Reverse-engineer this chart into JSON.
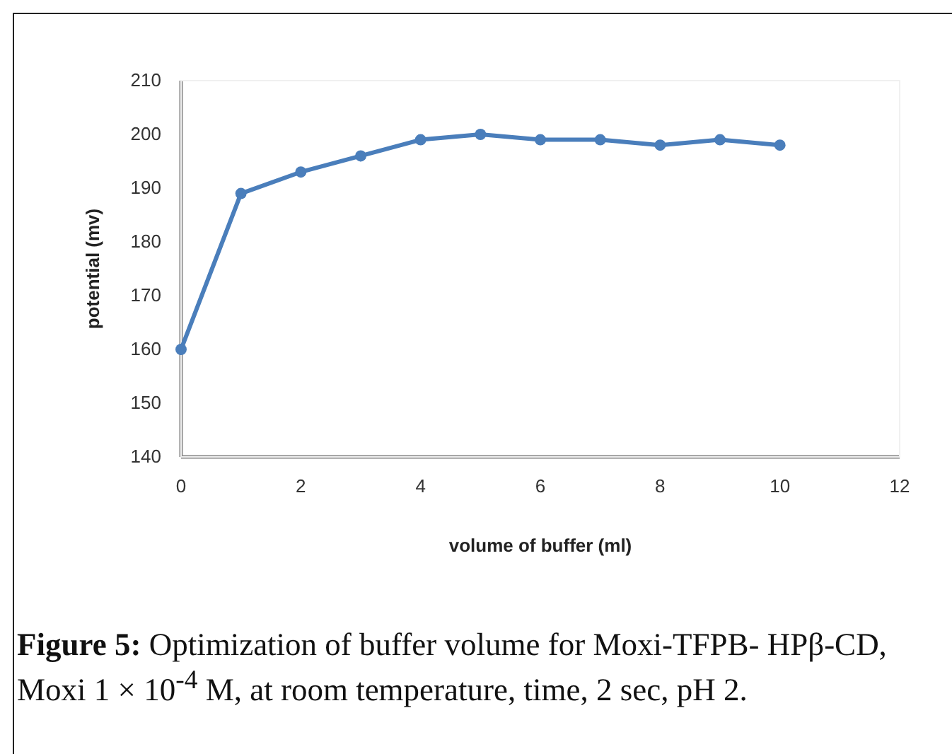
{
  "chart_data": {
    "type": "line",
    "xlabel": "volume of buffer (ml)",
    "ylabel": "potential (mv)",
    "x": [
      0,
      1,
      2,
      3,
      4,
      5,
      6,
      7,
      8,
      9,
      10
    ],
    "series": [
      {
        "color": "#4a7ebb",
        "values": [
          160,
          189,
          193,
          196,
          199,
          200,
          199,
          199,
          198,
          199,
          198
        ]
      }
    ],
    "xlim": [
      0,
      12
    ],
    "xticks": [
      0,
      2,
      4,
      6,
      8,
      10,
      12
    ],
    "ylim": [
      140,
      210
    ],
    "yticks": [
      140,
      150,
      160,
      170,
      180,
      190,
      200,
      210
    ],
    "grid": false,
    "legend": false,
    "marker": "circle",
    "line_style": "solid",
    "annotations": [
      "Figure 5: Optimization of buffer volume for Moxi-TFPB- HPβ-CD, Moxi 1 × 10$^{-4}$ M, at room temperature, time, 2 sec, pH 2."
    ]
  }
}
